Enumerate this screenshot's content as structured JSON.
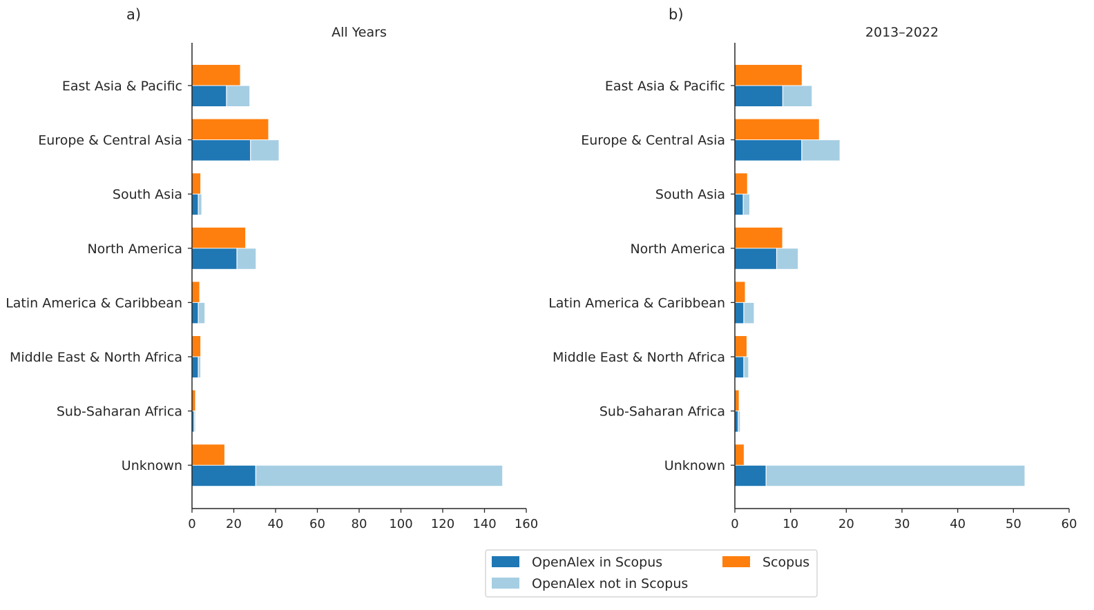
{
  "chart_data": [
    {
      "type": "bar",
      "orientation": "horizontal",
      "panel_label": "a)",
      "title": "All Years",
      "categories": [
        "East Asia & Pacific",
        "Europe & Central Asia",
        "South Asia",
        "North America",
        "Latin America & Caribbean",
        "Middle East & North Africa",
        "Sub-Saharan Africa",
        "Unknown"
      ],
      "series": [
        {
          "name": "Scopus",
          "color": "#ff7f0e",
          "values": [
            23,
            36.5,
            4,
            25.5,
            3.5,
            4,
            1.5,
            15.5
          ]
        },
        {
          "name": "OpenAlex in Scopus",
          "color": "#1f77b4",
          "values": [
            16.5,
            28,
            3,
            21.5,
            3,
            3,
            1,
            30.5
          ]
        },
        {
          "name": "OpenAlex not in Scopus",
          "color": "#a6cee3",
          "stacked_on": "OpenAlex in Scopus",
          "values": [
            11,
            13.5,
            1.5,
            9,
            3,
            1,
            0.5,
            118
          ]
        }
      ],
      "xlim": [
        0,
        160
      ],
      "xticks": [
        "0",
        "20",
        "40",
        "60",
        "80",
        "100",
        "120",
        "140",
        "160"
      ],
      "xlabel": "",
      "ylabel": "",
      "grid": false
    },
    {
      "type": "bar",
      "orientation": "horizontal",
      "panel_label": "b)",
      "title": "2013–2022",
      "categories": [
        "East Asia & Pacific",
        "Europe & Central Asia",
        "South Asia",
        "North America",
        "Latin America & Caribbean",
        "Middle East & North Africa",
        "Sub-Saharan Africa",
        "Unknown"
      ],
      "series": [
        {
          "name": "Scopus",
          "color": "#ff7f0e",
          "values": [
            12,
            15.1,
            2.2,
            8.5,
            1.8,
            2.1,
            0.7,
            1.6
          ]
        },
        {
          "name": "OpenAlex in Scopus",
          "color": "#1f77b4",
          "values": [
            8.6,
            12,
            1.5,
            7.5,
            1.6,
            1.6,
            0.6,
            5.6
          ]
        },
        {
          "name": "OpenAlex not in Scopus",
          "color": "#a6cee3",
          "stacked_on": "OpenAlex in Scopus",
          "values": [
            5.2,
            6.8,
            1.1,
            3.8,
            1.8,
            0.8,
            0.3,
            46.4
          ]
        }
      ],
      "xlim": [
        0,
        60
      ],
      "xticks": [
        "0",
        "10",
        "20",
        "30",
        "40",
        "50",
        "60"
      ],
      "xlabel": "",
      "ylabel": "",
      "grid": false
    }
  ],
  "legend": {
    "placement": "bottom-center",
    "items": [
      {
        "label": "OpenAlex in Scopus",
        "color": "#1f77b4"
      },
      {
        "label": "OpenAlex not in Scopus",
        "color": "#a6cee3"
      },
      {
        "label": "Scopus",
        "color": "#ff7f0e"
      }
    ]
  }
}
